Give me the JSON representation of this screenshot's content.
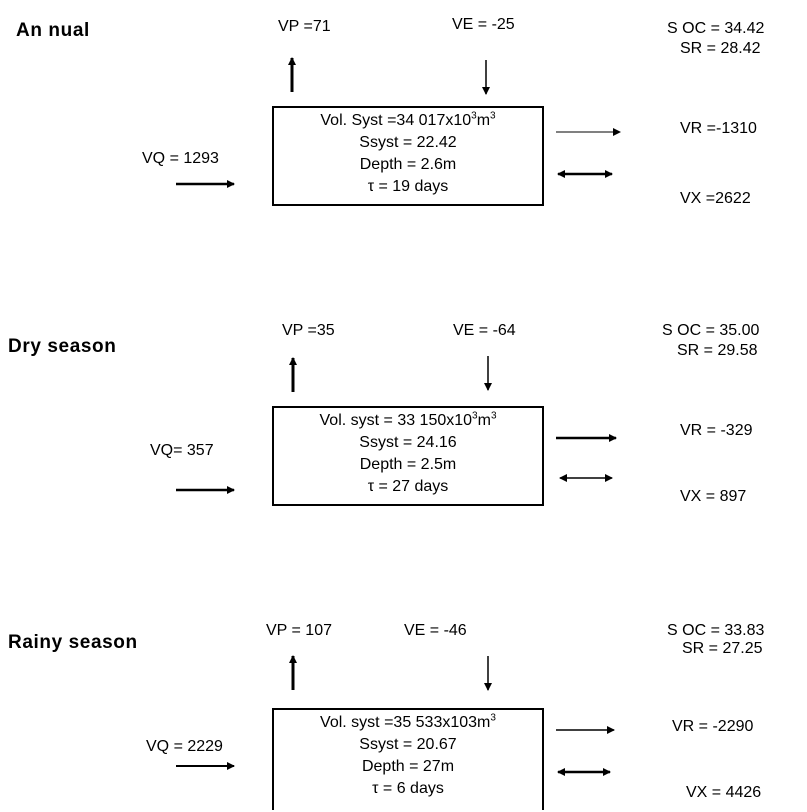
{
  "panels": [
    {
      "title": "An nual",
      "vp": "VP =71",
      "ve": "VE = -25",
      "vq": "VQ = 1293",
      "vr": "VR =-1310",
      "vx": "VX =2622",
      "soc": "S OC = 34.42",
      "sr": "SR = 28.42",
      "box": {
        "vol": "Vol. Syst =34 017x10",
        "vol_exp": "3",
        "vol_unit": "m",
        "vol_tail": "3",
        "ssyst": "Ssyst = 22.42",
        "depth": "Depth = 2.6m",
        "tau": "τ = 19 days"
      }
    },
    {
      "title": "Dry season",
      "vp": "VP =35",
      "ve": "VE = -64",
      "vq": "VQ= 357",
      "vr": "VR = -329",
      "vx": "VX = 897",
      "soc": "S OC = 35.00",
      "sr": "SR = 29.58",
      "box": {
        "vol": "Vol. syst = 33 150x10",
        "vol_exp": "3",
        "vol_unit": "m",
        "vol_tail": "3",
        "ssyst": "Ssyst = 24.16",
        "depth": "Depth = 2.5m",
        "tau": "τ = 27 days"
      }
    },
    {
      "title": "Rainy season",
      "vp": "VP = 107",
      "ve": "VE = -46",
      "vq": "VQ = 2229",
      "vr": "VR = -2290",
      "vx": "VX = 4426",
      "soc": "S OC = 33.83",
      "sr": "SR = 27.25",
      "box": {
        "vol": "Vol. syst =35 533x103m",
        "vol_exp": "",
        "vol_unit": "",
        "vol_tail": "3",
        "ssyst": "Ssyst = 20.67",
        "depth": "Depth = 27m",
        "tau": "τ = 6 days"
      }
    }
  ]
}
